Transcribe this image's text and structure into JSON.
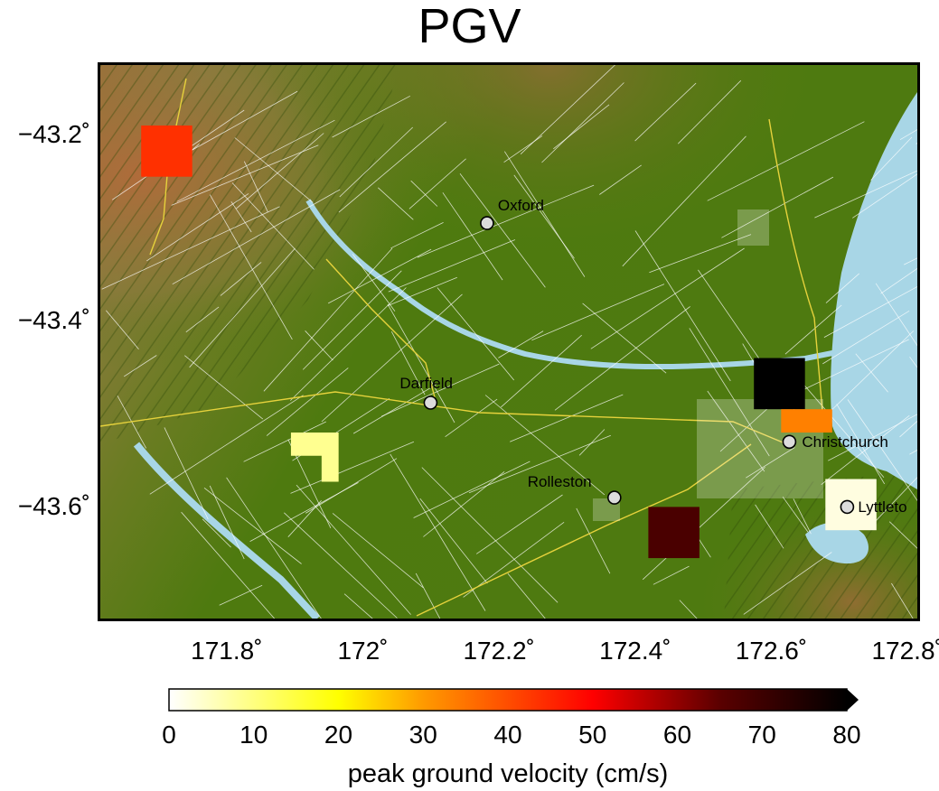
{
  "title": "PGV",
  "map": {
    "x_ticks": [
      "171.8˚",
      "172˚",
      "172.2˚",
      "172.4˚",
      "172.6˚",
      "172.8˚"
    ],
    "y_ticks": [
      "−43.2˚",
      "−43.4˚",
      "−43.6˚"
    ],
    "x_tick_values": [
      171.8,
      172.0,
      172.2,
      172.4,
      172.6,
      172.8
    ],
    "y_tick_values": [
      -43.2,
      -43.4,
      -43.6
    ],
    "lon_range": [
      171.625,
      172.825
    ],
    "lat_range": [
      -43.72,
      -43.125
    ],
    "colors": {
      "land": "#4e7a0f",
      "water": "#a8d6e6",
      "roads": "#ffffff",
      "highways": "#e6d23c"
    }
  },
  "cities": [
    {
      "name": "Oxford",
      "lon": 172.193,
      "lat": -43.295
    },
    {
      "name": "Darfield",
      "lon": 172.11,
      "lat": -43.488
    },
    {
      "name": "Christchurch",
      "lon": 172.637,
      "lat": -43.53
    },
    {
      "name": "Rolleston",
      "lon": 172.38,
      "lat": -43.59
    },
    {
      "name": "Lyttleto",
      "lon": 172.722,
      "lat": -43.6
    }
  ],
  "stations": [
    {
      "lon0": 171.685,
      "lon1": 171.76,
      "lat0": -43.19,
      "lat1": -43.245,
      "value": 47,
      "color": "#ff3000"
    },
    {
      "lon0": 172.585,
      "lon1": 172.66,
      "lat0": -43.44,
      "lat1": -43.495,
      "value": 80,
      "color": "#000000"
    },
    {
      "lon0": 172.625,
      "lon1": 172.7,
      "lat0": -43.495,
      "lat1": -43.52,
      "value": 29,
      "color": "#ff8000"
    },
    {
      "lon0": 172.43,
      "lon1": 172.505,
      "lat0": -43.6,
      "lat1": -43.655,
      "value": 70,
      "color": "#4a0000"
    },
    {
      "lon0": 172.69,
      "lon1": 172.765,
      "lat0": -43.57,
      "lat1": -43.625,
      "value": 2,
      "color": "#fffde0"
    }
  ],
  "station_shape_l": {
    "color": "#ffff90",
    "value": 8
  },
  "colorbar": {
    "ticks": [
      "0",
      "10",
      "20",
      "30",
      "40",
      "50",
      "60",
      "70",
      "80"
    ],
    "min": 0,
    "max": 80,
    "label": "peak ground velocity (cm/s)",
    "stops": [
      {
        "v": 0,
        "color": "#ffffff"
      },
      {
        "v": 20,
        "color": "#ffff00"
      },
      {
        "v": 30,
        "color": "#ff9a00"
      },
      {
        "v": 50,
        "color": "#ff0000"
      },
      {
        "v": 65,
        "color": "#5a0000"
      },
      {
        "v": 80,
        "color": "#000000"
      }
    ]
  }
}
